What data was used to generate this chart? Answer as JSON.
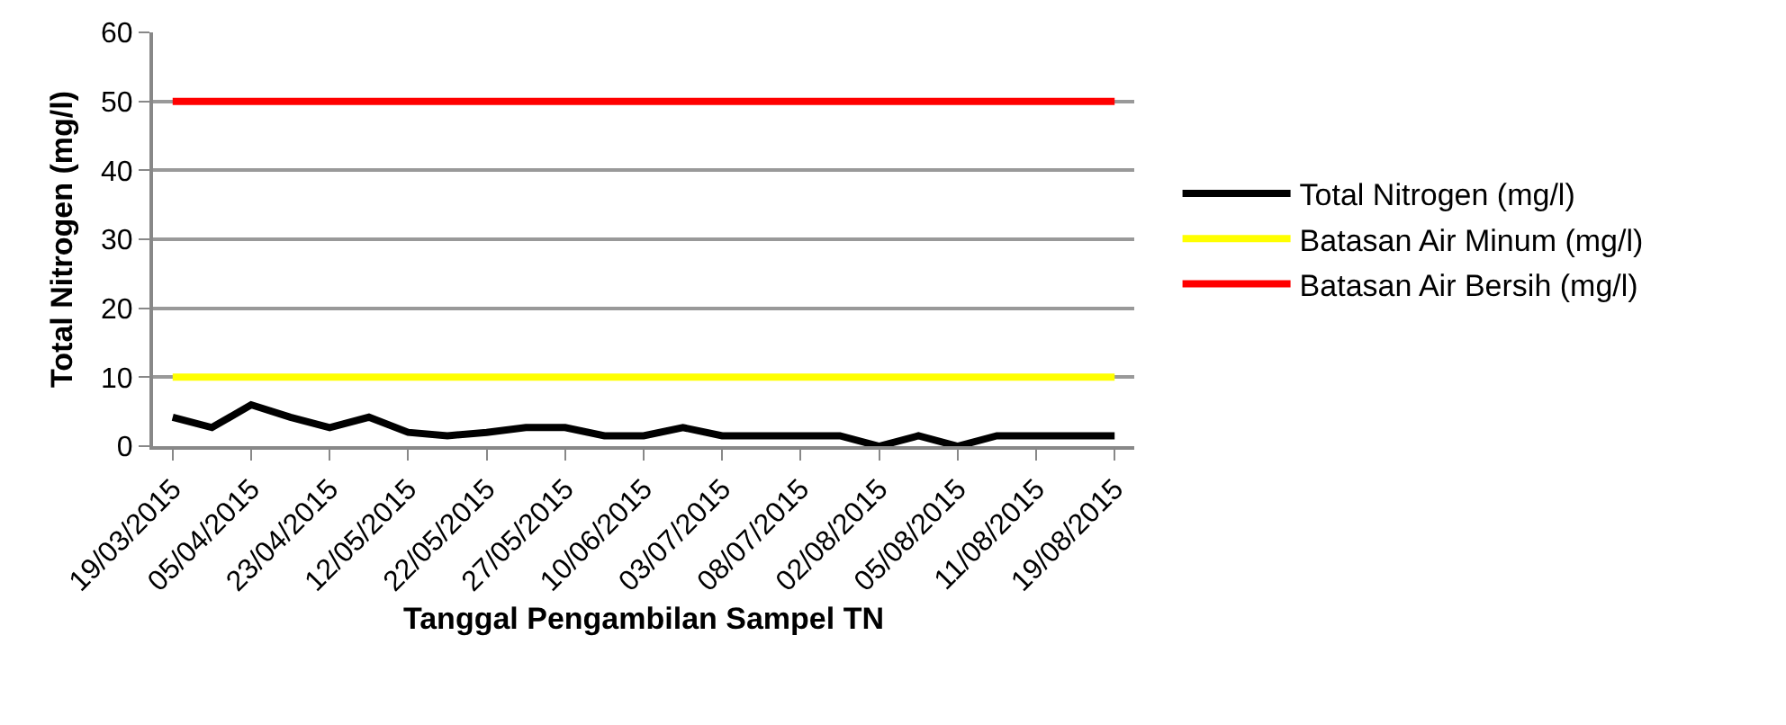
{
  "chart_data": {
    "type": "line",
    "xlabel": "Tanggal Pengambilan Sampel TN",
    "ylabel": "Total Nitrogen (mg/l)",
    "categories": [
      "19/03/2015",
      null,
      "05/04/2015",
      null,
      "23/04/2015",
      null,
      "12/05/2015",
      null,
      "22/05/2015",
      null,
      "27/05/2015",
      null,
      "10/06/2015",
      null,
      "03/07/2015",
      null,
      "08/07/2015",
      null,
      "02/08/2015",
      null,
      "05/08/2015",
      null,
      "11/08/2015",
      null,
      "19/08/2015"
    ],
    "series": [
      {
        "name": "Total Nitrogen (mg/l)",
        "color": "#000000",
        "values": [
          4.2,
          2.7,
          6,
          4.2,
          2.7,
          4.2,
          2,
          1.5,
          2,
          2.7,
          2.7,
          1.5,
          1.5,
          2.7,
          1.5,
          1.5,
          1.5,
          1.5,
          0,
          1.5,
          0,
          1.5,
          1.5,
          1.5,
          1.5
        ]
      },
      {
        "name": "Batasan Air Minum (mg/l)",
        "color": "#ffff00",
        "values": [
          10,
          10,
          10,
          10,
          10,
          10,
          10,
          10,
          10,
          10,
          10,
          10,
          10,
          10,
          10,
          10,
          10,
          10,
          10,
          10,
          10,
          10,
          10,
          10,
          10
        ]
      },
      {
        "name": "Batasan Air Bersih (mg/l)",
        "color": "#ff0000",
        "values": [
          50,
          50,
          50,
          50,
          50,
          50,
          50,
          50,
          50,
          50,
          50,
          50,
          50,
          50,
          50,
          50,
          50,
          50,
          50,
          50,
          50,
          50,
          50,
          50,
          50
        ]
      }
    ],
    "ylim": [
      0,
      60
    ],
    "yticks": [
      0,
      10,
      20,
      30,
      40,
      50,
      60
    ],
    "grid": "y",
    "legend": "right",
    "marker": "none",
    "line_style": "solid"
  }
}
